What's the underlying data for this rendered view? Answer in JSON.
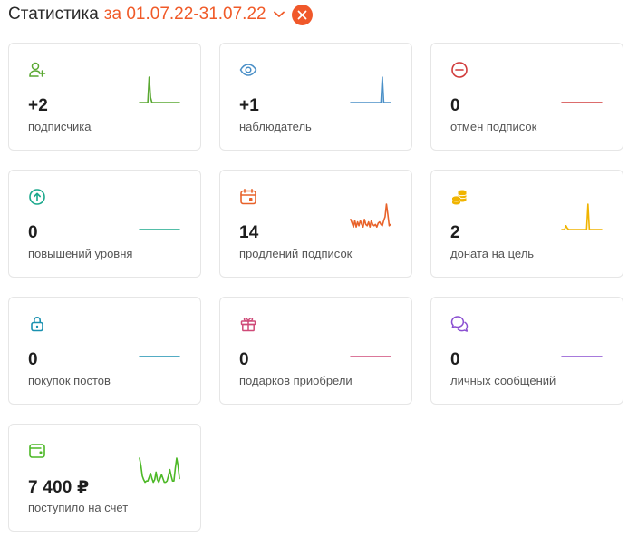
{
  "header": {
    "title": "Статистика",
    "period": "за 01.07.22-31.07.22"
  },
  "cards": [
    {
      "name": "subscribers",
      "value": "+2",
      "label": "подписчика",
      "color": "#5aa832",
      "icon": "user-plus-icon",
      "spark": [
        0,
        0,
        0,
        0,
        0,
        0,
        0,
        1,
        0.2,
        0,
        0,
        0,
        0,
        0,
        0,
        0,
        0,
        0,
        0,
        0,
        0,
        0,
        0,
        0,
        0,
        0,
        0,
        0,
        0,
        0
      ]
    },
    {
      "name": "watchers",
      "value": "+1",
      "label": "наблюдатель",
      "color": "#4a8fc7",
      "icon": "eye-icon",
      "spark": [
        0,
        0,
        0,
        0,
        0,
        0,
        0,
        0,
        0,
        0,
        0,
        0,
        0,
        0,
        0,
        0,
        0,
        0,
        0,
        0,
        0,
        0,
        0,
        1,
        0,
        0,
        0,
        0,
        0,
        0
      ]
    },
    {
      "name": "unsubscribes",
      "value": "0",
      "label": "отмен подписок",
      "color": "#d13b3b",
      "icon": "minus-circle-icon",
      "spark": [
        0,
        0,
        0,
        0,
        0,
        0,
        0,
        0,
        0,
        0,
        0,
        0,
        0,
        0,
        0,
        0,
        0,
        0,
        0,
        0,
        0,
        0,
        0,
        0,
        0,
        0,
        0,
        0,
        0,
        0
      ]
    },
    {
      "name": "level-upgrades",
      "value": "0",
      "label": "повышений уровня",
      "color": "#1aa88c",
      "icon": "arrow-up-circle-icon",
      "spark": [
        0,
        0,
        0,
        0,
        0,
        0,
        0,
        0,
        0,
        0,
        0,
        0,
        0,
        0,
        0,
        0,
        0,
        0,
        0,
        0,
        0,
        0,
        0,
        0,
        0,
        0,
        0,
        0,
        0,
        0
      ]
    },
    {
      "name": "renewals",
      "value": "14",
      "label": "продлений подписок",
      "color": "#e8622a",
      "icon": "calendar-icon",
      "spark": [
        0.4,
        0.25,
        0.1,
        0.35,
        0.1,
        0.3,
        0.15,
        0.35,
        0.2,
        0.1,
        0.4,
        0.2,
        0.15,
        0.3,
        0.1,
        0.35,
        0.2,
        0.15,
        0.2,
        0.1,
        0.25,
        0.3,
        0.2,
        0.15,
        0.35,
        0.5,
        1,
        0.6,
        0.15,
        0.2
      ]
    },
    {
      "name": "donations",
      "value": "2",
      "label": "доната на цель",
      "color": "#f0b400",
      "icon": "coins-icon",
      "spark": [
        0,
        0,
        0,
        0.15,
        0.05,
        0,
        0,
        0,
        0,
        0,
        0,
        0,
        0,
        0,
        0,
        0,
        0,
        0,
        0,
        1,
        0,
        0,
        0,
        0,
        0,
        0,
        0,
        0,
        0,
        0
      ]
    },
    {
      "name": "post-purchases",
      "value": "0",
      "label": "покупок постов",
      "color": "#1a91b0",
      "icon": "lock-icon",
      "spark": [
        0,
        0,
        0,
        0,
        0,
        0,
        0,
        0,
        0,
        0,
        0,
        0,
        0,
        0,
        0,
        0,
        0,
        0,
        0,
        0,
        0,
        0,
        0,
        0,
        0,
        0,
        0,
        0,
        0,
        0
      ]
    },
    {
      "name": "gifts",
      "value": "0",
      "label": "подарков приобрели",
      "color": "#cf4a78",
      "icon": "gift-icon",
      "spark": [
        0,
        0,
        0,
        0,
        0,
        0,
        0,
        0,
        0,
        0,
        0,
        0,
        0,
        0,
        0,
        0,
        0,
        0,
        0,
        0,
        0,
        0,
        0,
        0,
        0,
        0,
        0,
        0,
        0,
        0
      ]
    },
    {
      "name": "messages",
      "value": "0",
      "label": "личных сообщений",
      "color": "#8a4fd1",
      "icon": "chat-bubbles-icon",
      "spark": [
        0,
        0,
        0,
        0,
        0,
        0,
        0,
        0,
        0,
        0,
        0,
        0,
        0,
        0,
        0,
        0,
        0,
        0,
        0,
        0,
        0,
        0,
        0,
        0,
        0,
        0,
        0,
        0,
        0,
        0
      ]
    },
    {
      "name": "income",
      "value": "7 400 ₽",
      "label": "поступило на счет",
      "color": "#4cb826",
      "icon": "wallet-icon",
      "spark": [
        1,
        0.7,
        0.3,
        0.15,
        0.05,
        0.1,
        0.1,
        0.25,
        0.4,
        0.2,
        0.05,
        0.15,
        0.45,
        0.15,
        0.05,
        0.2,
        0.35,
        0.2,
        0.05,
        0.05,
        0.1,
        0.3,
        0.55,
        0.3,
        0.1,
        0.1,
        0.6,
        1,
        0.7,
        0.2
      ]
    }
  ]
}
